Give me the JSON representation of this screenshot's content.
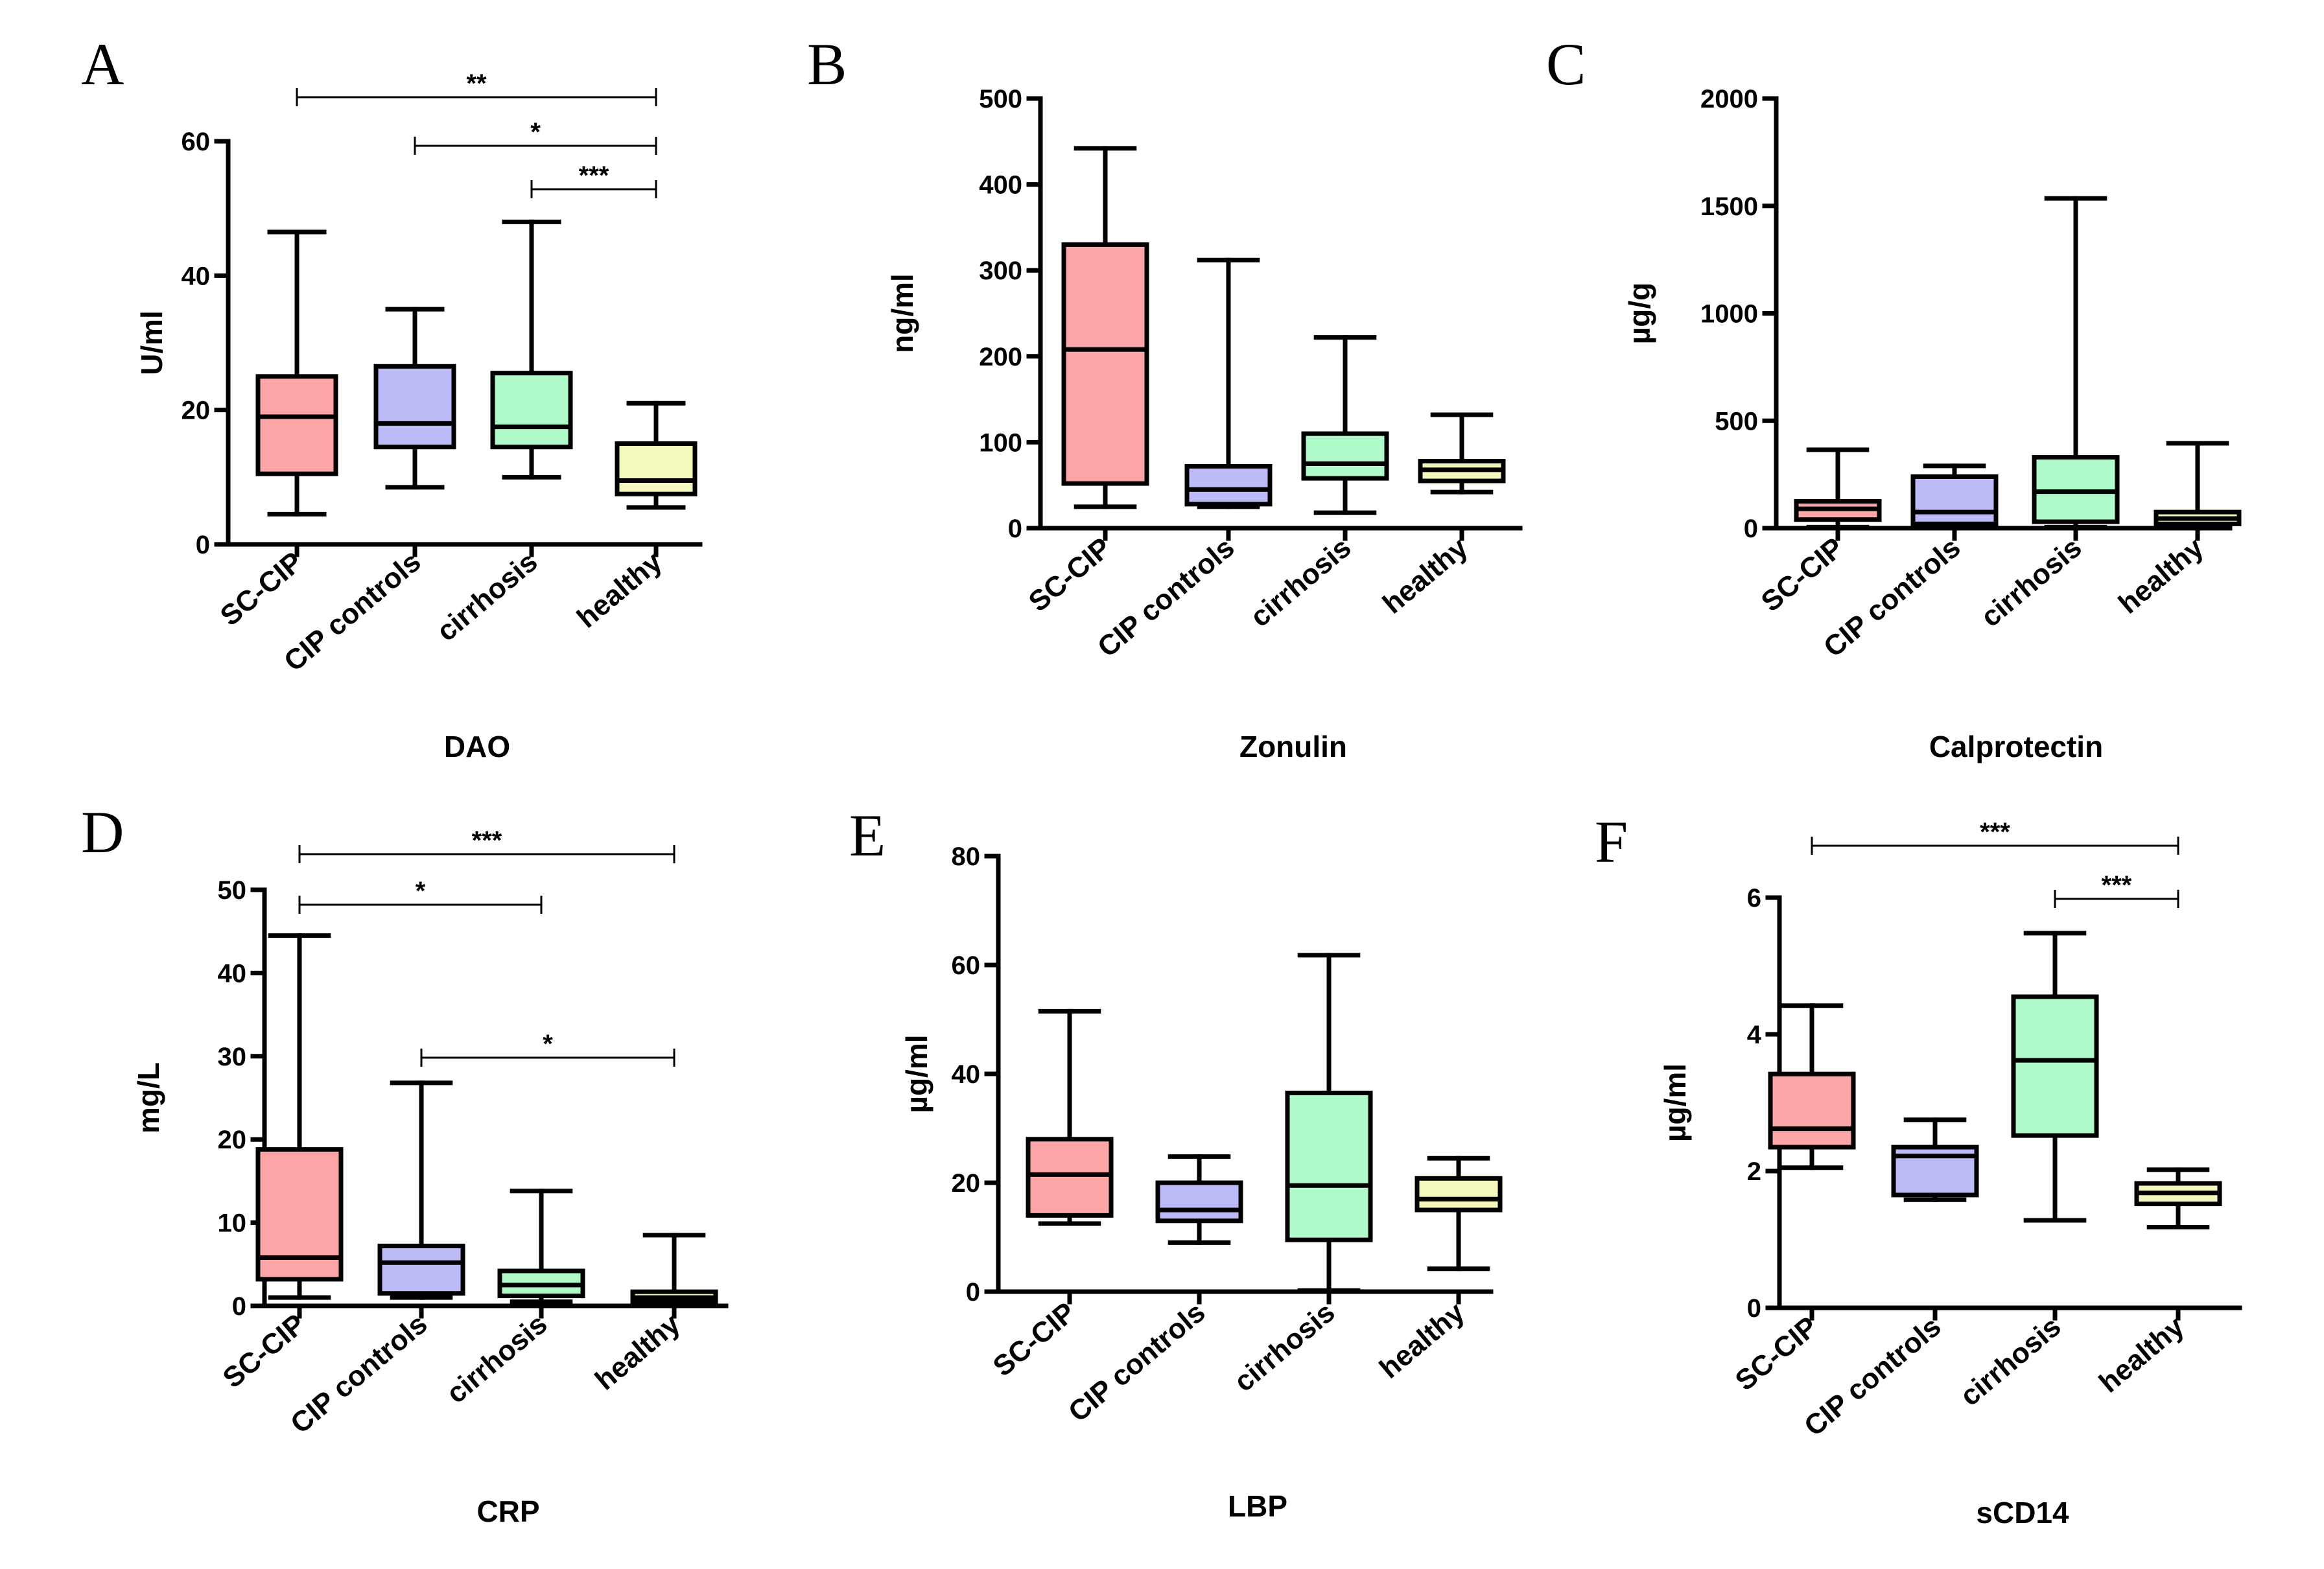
{
  "chart_data": [
    {
      "panel": "A",
      "type": "box",
      "title": "DAO",
      "xlabel": "DAO",
      "ylabel": "U/ml",
      "ylim": [
        0,
        60
      ],
      "yticks": [
        0,
        20,
        40,
        60
      ],
      "yticklabels": [
        "0",
        "20",
        "40",
        "60"
      ],
      "categories": [
        "SC-CIP",
        "CIP controls",
        "cirrhosis",
        "healthy"
      ],
      "boxes": [
        {
          "min": 4.5,
          "q1": 10.5,
          "median": 19,
          "q3": 25,
          "max": 46.5
        },
        {
          "min": 8.5,
          "q1": 14.5,
          "median": 18,
          "q3": 26.5,
          "max": 35
        },
        {
          "min": 10,
          "q1": 14.5,
          "median": 17.5,
          "q3": 25.5,
          "max": 48
        },
        {
          "min": 5.5,
          "q1": 7.5,
          "median": 9.5,
          "q3": 15,
          "max": 21
        }
      ],
      "significance": [
        {
          "from": 0,
          "to": 3,
          "label": "**"
        },
        {
          "from": 1,
          "to": 3,
          "label": "*"
        },
        {
          "from": 2,
          "to": 3,
          "label": "***"
        }
      ]
    },
    {
      "panel": "B",
      "type": "box",
      "title": "Zonulin",
      "xlabel": "Zonulin",
      "ylabel": "ng/ml",
      "ylim": [
        0,
        500
      ],
      "yticks": [
        0,
        100,
        200,
        300,
        400,
        500
      ],
      "yticklabels": [
        "0",
        "100",
        "200",
        "300",
        "400",
        "500"
      ],
      "categories": [
        "SC-CIP",
        "CIP controls",
        "cirrhosis",
        "healthy"
      ],
      "boxes": [
        {
          "min": 25,
          "q1": 52,
          "median": 208,
          "q3": 330,
          "max": 442
        },
        {
          "min": 25,
          "q1": 28,
          "median": 45,
          "q3": 72,
          "max": 312
        },
        {
          "min": 18,
          "q1": 58,
          "median": 75,
          "q3": 110,
          "max": 222
        },
        {
          "min": 42,
          "q1": 55,
          "median": 68,
          "q3": 78,
          "max": 132
        }
      ],
      "significance": []
    },
    {
      "panel": "C",
      "type": "box",
      "title": "Calprotectin",
      "xlabel": "Calprotectin",
      "ylabel": "µg/g",
      "ylim": [
        0,
        2000
      ],
      "yticks": [
        0,
        500,
        1000,
        1500,
        2000
      ],
      "yticklabels": [
        "0",
        "500",
        "1000",
        "1500",
        "2000"
      ],
      "categories": [
        "SC-CIP",
        "CIP controls",
        "cirrhosis",
        "healthy"
      ],
      "boxes": [
        {
          "min": 5,
          "q1": 40,
          "median": 90,
          "q3": 125,
          "max": 365
        },
        {
          "min": 5,
          "q1": 20,
          "median": 75,
          "q3": 240,
          "max": 290
        },
        {
          "min": 5,
          "q1": 30,
          "median": 170,
          "q3": 330,
          "max": 1535
        },
        {
          "min": 5,
          "q1": 20,
          "median": 45,
          "q3": 75,
          "max": 395
        }
      ],
      "significance": []
    },
    {
      "panel": "D",
      "type": "box",
      "title": "CRP",
      "xlabel": "CRP",
      "ylabel": "mg/L",
      "ylim": [
        0,
        50
      ],
      "yticks": [
        0,
        10,
        20,
        30,
        40,
        50
      ],
      "yticklabels": [
        "0",
        "10",
        "20",
        "30",
        "40",
        "50"
      ],
      "categories": [
        "SC-CIP",
        "CIP controls",
        "cirrhosis",
        "healthy"
      ],
      "boxes": [
        {
          "min": 1,
          "q1": 3.2,
          "median": 5.8,
          "q3": 18.8,
          "max": 44.5
        },
        {
          "min": 1,
          "q1": 1.5,
          "median": 5.2,
          "q3": 7.2,
          "max": 26.8
        },
        {
          "min": 0.5,
          "q1": 1.2,
          "median": 2.5,
          "q3": 4.2,
          "max": 13.8
        },
        {
          "min": 0.3,
          "q1": 0.5,
          "median": 1,
          "q3": 1.7,
          "max": 8.5
        }
      ],
      "significance": [
        {
          "from": 0,
          "to": 3,
          "label": "***"
        },
        {
          "from": 0,
          "to": 2,
          "label": "*"
        },
        {
          "from": 1,
          "to": 3,
          "label": "*"
        }
      ]
    },
    {
      "panel": "E",
      "type": "box",
      "title": "LBP",
      "xlabel": "LBP",
      "ylabel": "µg/ml",
      "ylim": [
        0,
        80
      ],
      "yticks": [
        0,
        20,
        40,
        60,
        80
      ],
      "yticklabels": [
        "0",
        "20",
        "40",
        "60",
        "80"
      ],
      "categories": [
        "SC-CIP",
        "CIP controls",
        "cirrhosis",
        "healthy"
      ],
      "boxes": [
        {
          "min": 12.5,
          "q1": 14,
          "median": 21.5,
          "q3": 28,
          "max": 51.5
        },
        {
          "min": 9,
          "q1": 13,
          "median": 15,
          "q3": 20,
          "max": 24.8
        },
        {
          "min": 0.2,
          "q1": 9.5,
          "median": 19.5,
          "q3": 36.5,
          "max": 61.8
        },
        {
          "min": 4.2,
          "q1": 15,
          "median": 17,
          "q3": 20.8,
          "max": 24.5
        }
      ],
      "significance": []
    },
    {
      "panel": "F",
      "type": "box",
      "title": "sCD14",
      "xlabel": "sCD14",
      "ylabel": "µg/ml",
      "ylim": [
        0,
        6
      ],
      "yticks": [
        0,
        2,
        4,
        6
      ],
      "yticklabels": [
        "0",
        "2",
        "4",
        "6"
      ],
      "categories": [
        "SC-CIP",
        "CIP controls",
        "cirrhosis",
        "healthy"
      ],
      "boxes": [
        {
          "min": 2.05,
          "q1": 2.35,
          "median": 2.62,
          "q3": 3.42,
          "max": 4.42
        },
        {
          "min": 1.58,
          "q1": 1.65,
          "median": 2.22,
          "q3": 2.35,
          "max": 2.75
        },
        {
          "min": 1.28,
          "q1": 2.52,
          "median": 3.62,
          "q3": 4.55,
          "max": 5.48
        },
        {
          "min": 1.18,
          "q1": 1.52,
          "median": 1.68,
          "q3": 1.82,
          "max": 2.02
        }
      ],
      "significance": [
        {
          "from": 0,
          "to": 3,
          "label": "***"
        },
        {
          "from": 2,
          "to": 3,
          "label": "***"
        }
      ]
    }
  ],
  "group_colors": [
    "#fca5a6",
    "#bcbbf7",
    "#b0f9c9",
    "#f4f8bd"
  ]
}
